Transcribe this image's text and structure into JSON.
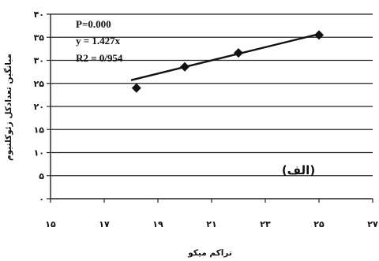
{
  "chart_data": {
    "type": "scatter",
    "title": "",
    "xlabel": "تراکم میکو",
    "ylabel": "میانگین تعدادکل زئوکلنیوم",
    "xlim": [
      15,
      27
    ],
    "ylim": [
      0,
      40
    ],
    "x_ticks": [
      15,
      17,
      19,
      21,
      23,
      25,
      27
    ],
    "x_tick_labels": [
      "۱۵",
      "۱۷",
      "۱۹",
      "۲۱",
      "۲۳",
      "۲۵",
      "۲۷"
    ],
    "y_ticks": [
      0,
      5,
      10,
      15,
      20,
      25,
      30,
      35,
      40
    ],
    "y_tick_labels": [
      "۰",
      "۵",
      "۱۰",
      "۱۵",
      "۲۰",
      "۲۵",
      "۳۰",
      "۳۵",
      "۴۰"
    ],
    "grid": "horizontal",
    "series": [
      {
        "marker": "diamond",
        "x": [
          18.2,
          20.0,
          22.0,
          25.0
        ],
        "y": [
          24.0,
          28.6,
          31.6,
          35.5
        ]
      }
    ],
    "trendline": {
      "x": [
        18.0,
        25.0
      ],
      "y": [
        25.7,
        35.7
      ]
    },
    "annotations": [
      "P=0.000",
      "y = 1.427x",
      "R2 = 0/954"
    ],
    "panel_label": "(الف)"
  }
}
